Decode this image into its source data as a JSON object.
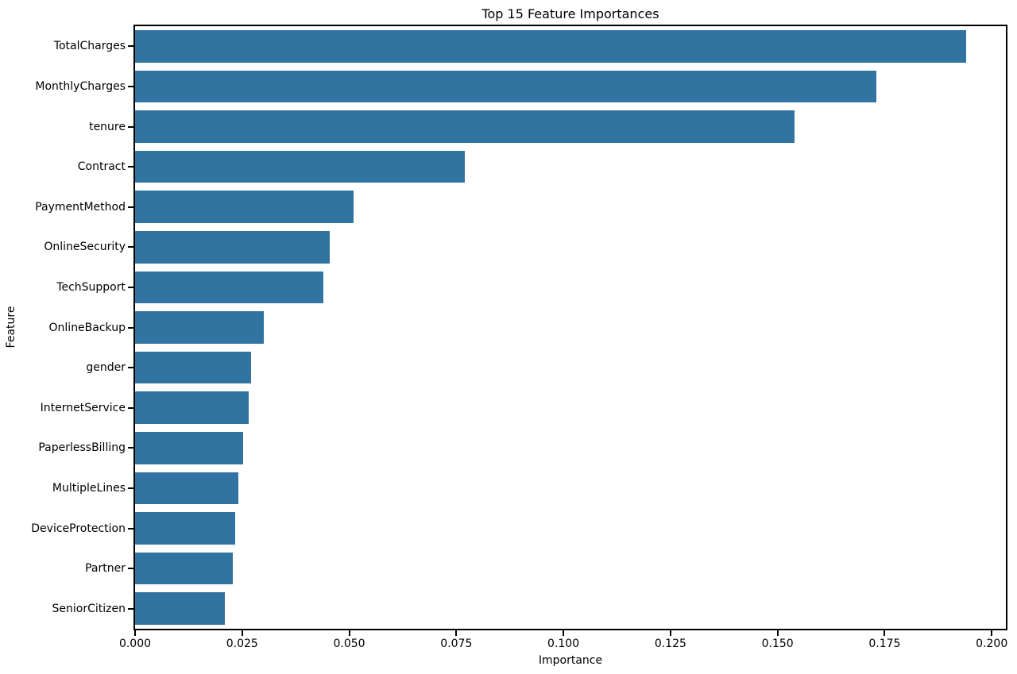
{
  "chart_data": {
    "type": "bar",
    "orientation": "horizontal",
    "title": "Top 15 Feature Importances",
    "xlabel": "Importance",
    "ylabel": "Feature",
    "categories": [
      "TotalCharges",
      "MonthlyCharges",
      "tenure",
      "Contract",
      "PaymentMethod",
      "OnlineSecurity",
      "TechSupport",
      "OnlineBackup",
      "gender",
      "InternetService",
      "PaperlessBilling",
      "MultipleLines",
      "DeviceProtection",
      "Partner",
      "SeniorCitizen"
    ],
    "values": [
      0.194,
      0.173,
      0.154,
      0.077,
      0.051,
      0.0455,
      0.044,
      0.03,
      0.027,
      0.0265,
      0.0253,
      0.0241,
      0.0234,
      0.0229,
      0.021
    ],
    "xlim": [
      0,
      0.2033
    ],
    "x_ticks": [
      0.0,
      0.025,
      0.05,
      0.075,
      0.1,
      0.125,
      0.15,
      0.175,
      0.2
    ],
    "x_tick_labels": [
      "0.000",
      "0.025",
      "0.050",
      "0.075",
      "0.100",
      "0.125",
      "0.150",
      "0.175",
      "0.200"
    ],
    "bar_color": "#3274a1",
    "spine_color": "#000000",
    "text_color": "#000000",
    "background_color": "#ffffff",
    "grid": false,
    "legend": null,
    "bar_fraction_of_slot": 0.8
  }
}
